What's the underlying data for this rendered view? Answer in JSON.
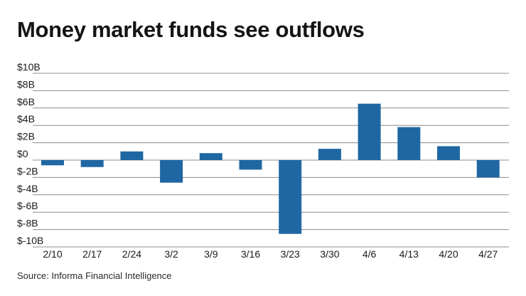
{
  "colors": {
    "bar": "#1f67a3",
    "grid": "#8c8c8c",
    "text": "#1a1a1a"
  },
  "chart_data": {
    "type": "bar",
    "title": "Money market funds see outflows",
    "xlabel": "",
    "ylabel": "",
    "grid": true,
    "categories": [
      "2/10",
      "2/17",
      "2/24",
      "3/2",
      "3/9",
      "3/16",
      "3/23",
      "3/30",
      "4/6",
      "4/13",
      "4/20",
      "4/27"
    ],
    "values": [
      -0.6,
      -0.8,
      1.0,
      -2.6,
      0.8,
      -1.1,
      -8.5,
      1.3,
      6.5,
      3.8,
      1.6,
      -2.0
    ],
    "ylim": [
      -10,
      10
    ],
    "yticks": [
      10,
      8,
      6,
      4,
      2,
      0,
      -2,
      -4,
      -6,
      -8,
      -10
    ],
    "ytick_labels": [
      "$10B",
      "$8B",
      "$6B",
      "$4B",
      "$2B",
      "$0",
      "$-2B",
      "$-4B",
      "$-6B",
      "$-8B",
      "$-10B"
    ],
    "source": "Source: Informa Financial Intelligence"
  }
}
